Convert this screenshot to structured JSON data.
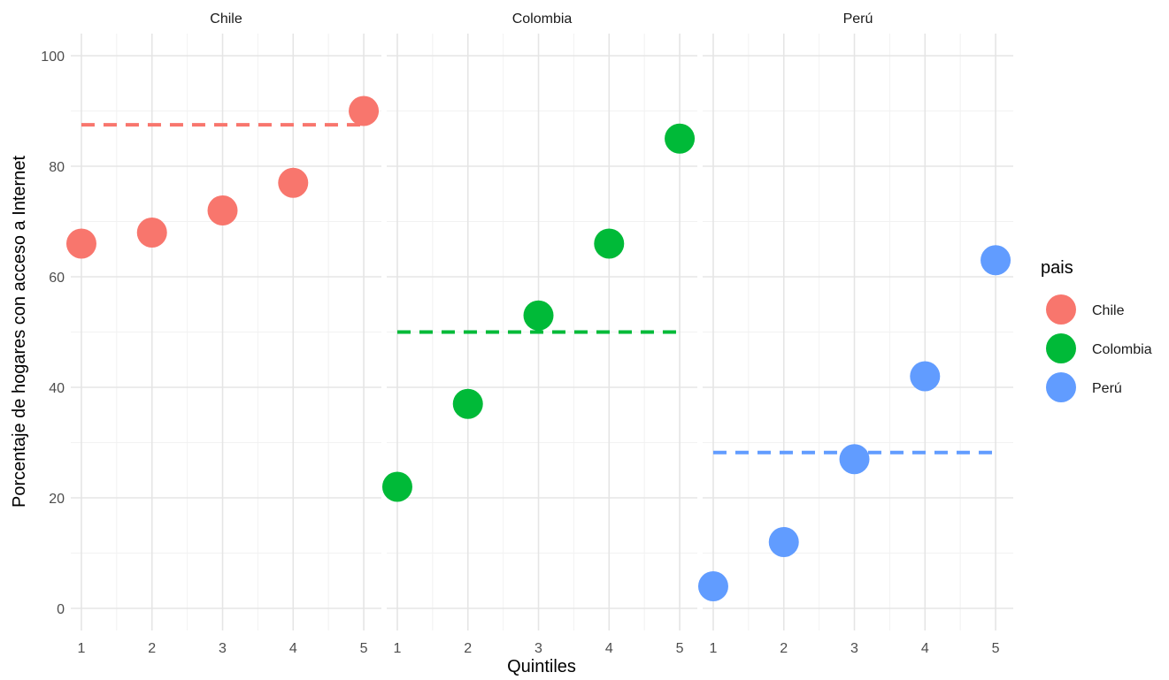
{
  "chart_data": {
    "type": "scatter",
    "facet_by": "pais",
    "xlabel": "Quintiles",
    "ylabel": "Porcentaje de hogares con acceso a Internet",
    "x_ticks": [
      "1",
      "2",
      "3",
      "4",
      "5"
    ],
    "y_ticks": [
      "0",
      "20",
      "40",
      "60",
      "80",
      "100"
    ],
    "ylim": [
      -4,
      104
    ],
    "xlim": [
      0.85,
      5.25
    ],
    "grid": true,
    "reference_line": "dashed horizontal line per panel",
    "legend": {
      "title": "pais",
      "position": "right",
      "entries": [
        "Chile",
        "Colombia",
        "Perú"
      ]
    },
    "series": [
      {
        "name": "Chile",
        "color": "#F8766D",
        "x": [
          1,
          2,
          3,
          4,
          5
        ],
        "y": [
          66,
          68,
          72,
          77,
          90
        ],
        "reference_y": 87.5
      },
      {
        "name": "Colombia",
        "color": "#00BA38",
        "x": [
          1,
          2,
          3,
          4,
          5
        ],
        "y": [
          22,
          37,
          53,
          66,
          85
        ],
        "reference_y": 50
      },
      {
        "name": "Perú",
        "color": "#619CFF",
        "x": [
          1,
          2,
          3,
          4,
          5
        ],
        "y": [
          4,
          12,
          27,
          42,
          63
        ],
        "reference_y": 28.2
      }
    ]
  }
}
